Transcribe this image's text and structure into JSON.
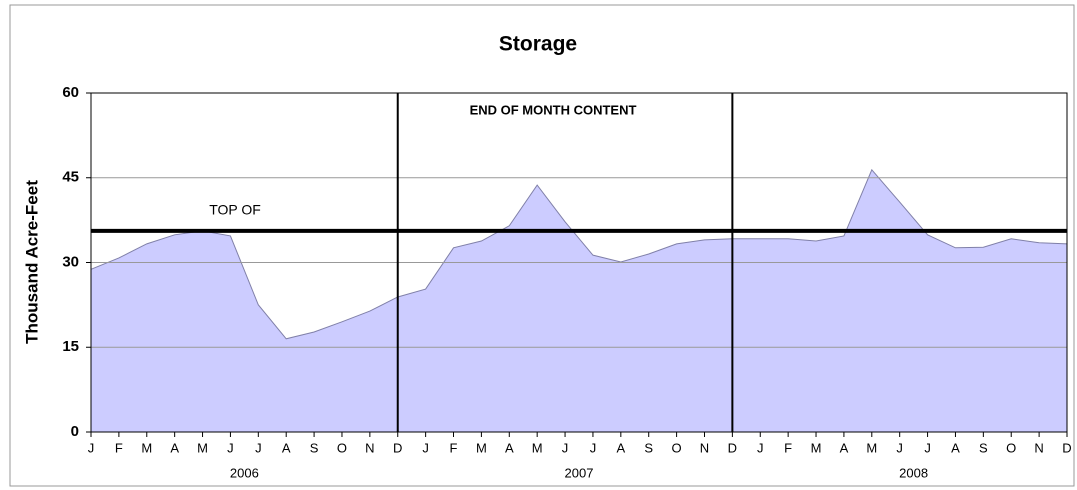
{
  "chart_data": {
    "type": "area",
    "title": "Storage",
    "y_label": "Thousand Acre-Feet",
    "annotation": "END OF MONTH CONTENT",
    "categories": [
      "J",
      "F",
      "M",
      "A",
      "M",
      "J",
      "J",
      "A",
      "S",
      "O",
      "N",
      "D",
      "J",
      "F",
      "M",
      "A",
      "M",
      "J",
      "J",
      "A",
      "S",
      "O",
      "N",
      "D",
      "J",
      "F",
      "M",
      "A",
      "M",
      "J",
      "J",
      "A",
      "S",
      "O",
      "N",
      "D"
    ],
    "years": [
      "2006",
      "2007",
      "2008"
    ],
    "values": [
      28.8,
      30.8,
      33.3,
      34.9,
      35.6,
      34.7,
      22.5,
      16.5,
      17.7,
      19.5,
      21.4,
      23.9,
      25.3,
      32.6,
      33.8,
      36.5,
      43.7,
      37.2,
      31.3,
      30.1,
      31.5,
      33.3,
      34.0,
      34.2,
      34.2,
      34.2,
      33.8,
      34.7,
      46.4,
      40.7,
      34.9,
      32.6,
      32.7,
      34.2,
      33.5,
      33.3
    ],
    "color": "#ccccff",
    "line_color": "#8080a8",
    "reference_line": {
      "label": "TOP OF",
      "value": 35.6
    },
    "ylim": [
      0,
      60
    ],
    "yticks": [
      0,
      15,
      30,
      45,
      60
    ],
    "grid": true
  }
}
